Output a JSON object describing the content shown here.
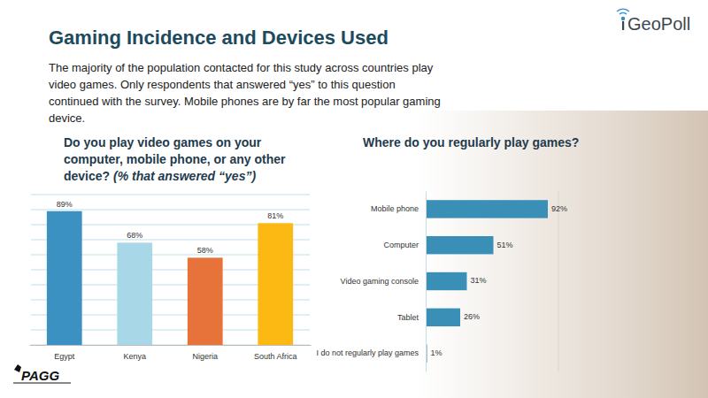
{
  "title": "Gaming Incidence and Devices Used",
  "text": "The majority of the population contacted for this study across countries play video games. Only respondents that answered “yes” to this question continued with the survey. Mobile phones are by far the most popular gaming device.",
  "logos": [
    "GeoPoll",
    "PAGG"
  ],
  "chart_data": [
    {
      "type": "bar",
      "title": "Do you play video games on your computer, mobile phone, or any other device?",
      "subtitle": "(% that answered “yes”)",
      "categories": [
        "Egypt",
        "Kenya",
        "Nigeria",
        "South Africa"
      ],
      "values": [
        89,
        68,
        58,
        81
      ],
      "value_labels": [
        "89%",
        "68%",
        "58%",
        "81%"
      ],
      "colors": [
        "#3a91c2",
        "#a8d8e8",
        "#e8733a",
        "#fdb913"
      ],
      "ylim": [
        0,
        100
      ],
      "yticks": [
        0,
        10,
        20,
        30,
        40,
        50,
        60,
        70,
        80,
        90,
        100
      ],
      "grid": true,
      "tick_labels": "x",
      "data_labels": true
    },
    {
      "type": "bar",
      "orientation": "horizontal",
      "title": "Where do you regularly play games?",
      "categories": [
        "Mobile phone",
        "Computer",
        "Video gaming console",
        "Tablet",
        "I do not regularly play games"
      ],
      "values": [
        92,
        51,
        31,
        26,
        1
      ],
      "value_labels": [
        "92%",
        "51%",
        "31%",
        "26%",
        "1%"
      ],
      "color": "#3a8fb7",
      "xlim": [
        0,
        100
      ],
      "grid": false,
      "tick_labels": "y",
      "data_labels": true
    }
  ]
}
